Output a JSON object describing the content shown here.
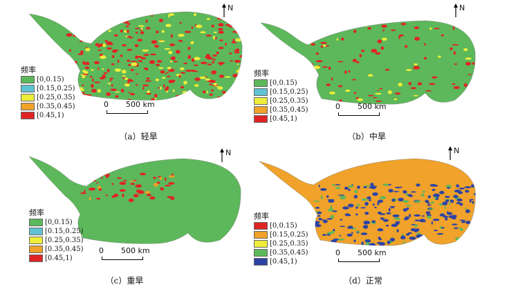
{
  "legend_title": "频率",
  "legend_ranges": [
    "[0,0.15)",
    "[0.15,0.25)",
    "[0.25,0.35)",
    "[0.35,0.45)",
    "[0.45,1)"
  ],
  "north_label": "N",
  "scale_zero": "0",
  "scale_length": "500 km",
  "colors": {
    "green": "#5cb85a",
    "cyan": "#5fc3d3",
    "yellow": "#eded3a",
    "orange": "#f0a22a",
    "red": "#e02424",
    "blue": "#2e43a4"
  },
  "panels": [
    {
      "caption": "（a）轻旱",
      "base": "green",
      "patch": "red",
      "patch2": "yellow",
      "legend_colors": [
        "green",
        "cyan",
        "yellow",
        "orange",
        "red"
      ]
    },
    {
      "caption": "（b）中旱",
      "base": "green",
      "patch": "red",
      "patch2": "yellow",
      "legend_colors": [
        "green",
        "cyan",
        "yellow",
        "orange",
        "red"
      ]
    },
    {
      "caption": "（c）重旱",
      "base": "green",
      "patch": "red",
      "patch2": "orange",
      "legend_colors": [
        "green",
        "cyan",
        "yellow",
        "orange",
        "red"
      ]
    },
    {
      "caption": "（d）正常",
      "base": "orange",
      "patch": "blue",
      "patch2": "green",
      "legend_colors": [
        "red",
        "orange",
        "yellow",
        "green",
        "blue"
      ]
    }
  ]
}
